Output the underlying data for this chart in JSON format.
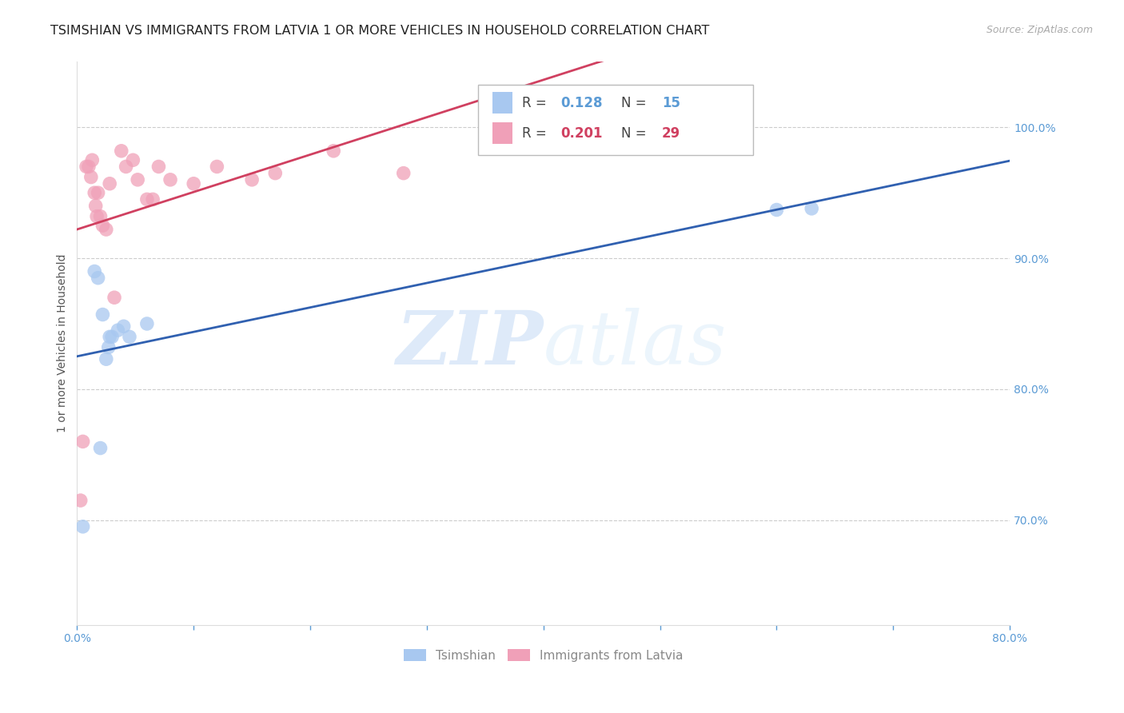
{
  "title": "TSIMSHIAN VS IMMIGRANTS FROM LATVIA 1 OR MORE VEHICLES IN HOUSEHOLD CORRELATION CHART",
  "source": "Source: ZipAtlas.com",
  "ylabel": "1 or more Vehicles in Household",
  "xlim": [
    0.0,
    0.8
  ],
  "ylim": [
    0.62,
    1.05
  ],
  "color_blue": "#a8c8f0",
  "color_pink": "#f0a0b8",
  "line_color_blue": "#3060b0",
  "line_color_pink": "#d04060",
  "watermark_zip": "ZIP",
  "watermark_atlas": "atlas",
  "tsimshian_x": [
    0.005,
    0.018,
    0.02,
    0.022,
    0.025,
    0.027,
    0.03,
    0.035,
    0.04,
    0.045,
    0.06,
    0.6,
    0.63,
    0.015,
    0.028
  ],
  "tsimshian_y": [
    0.695,
    0.885,
    0.755,
    0.857,
    0.823,
    0.832,
    0.84,
    0.845,
    0.848,
    0.84,
    0.85,
    0.937,
    0.938,
    0.89,
    0.84
  ],
  "latvia_x": [
    0.003,
    0.005,
    0.008,
    0.01,
    0.012,
    0.013,
    0.015,
    0.016,
    0.017,
    0.018,
    0.02,
    0.022,
    0.025,
    0.028,
    0.032,
    0.038,
    0.042,
    0.048,
    0.052,
    0.06,
    0.065,
    0.07,
    0.08,
    0.1,
    0.12,
    0.15,
    0.17,
    0.22,
    0.28
  ],
  "latvia_y": [
    0.715,
    0.76,
    0.97,
    0.97,
    0.962,
    0.975,
    0.95,
    0.94,
    0.932,
    0.95,
    0.932,
    0.925,
    0.922,
    0.957,
    0.87,
    0.982,
    0.97,
    0.975,
    0.96,
    0.945,
    0.945,
    0.97,
    0.96,
    0.957,
    0.97,
    0.96,
    0.965,
    0.982,
    0.965
  ],
  "bg_color": "#ffffff",
  "grid_color": "#cccccc",
  "title_fontsize": 11.5,
  "axis_label_fontsize": 10,
  "tick_fontsize": 10,
  "right_tick_color": "#5b9bd5",
  "bottom_tick_color": "#5b9bd5",
  "legend_r1": "0.128",
  "legend_n1": "15",
  "legend_r2": "0.201",
  "legend_n2": "29"
}
